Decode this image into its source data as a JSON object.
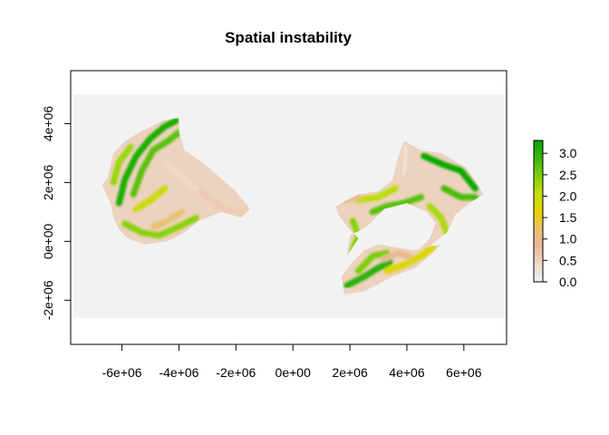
{
  "chart_data": {
    "type": "heatmap",
    "title": "Spatial instability",
    "xlabel": "",
    "ylabel": "",
    "xlim": [
      -7800000,
      7500000
    ],
    "ylim": [
      -3500000,
      5800000
    ],
    "extent": {
      "xmin": -7700000,
      "xmax": 7500000,
      "ymin": -2600000,
      "ymax": 5000000
    },
    "x_ticks": [
      {
        "value": -6000000,
        "label": "-6e+06"
      },
      {
        "value": -4000000,
        "label": "-4e+06"
      },
      {
        "value": -2000000,
        "label": "-2e+06"
      },
      {
        "value": 0,
        "label": "0e+00"
      },
      {
        "value": 2000000,
        "label": "2e+06"
      },
      {
        "value": 4000000,
        "label": "4e+06"
      },
      {
        "value": 6000000,
        "label": "6e+06"
      }
    ],
    "y_ticks": [
      {
        "value": -2000000,
        "label": "-2e+06"
      },
      {
        "value": 0,
        "label": "0e+00"
      },
      {
        "value": 2000000,
        "label": "2e+06"
      },
      {
        "value": 4000000,
        "label": "4e+06"
      }
    ],
    "colorbar": {
      "min": 0.0,
      "max": 3.3,
      "ticks": [
        {
          "value": 0.0,
          "label": "0.0"
        },
        {
          "value": 0.5,
          "label": "0.5"
        },
        {
          "value": 1.0,
          "label": "1.0"
        },
        {
          "value": 1.5,
          "label": "1.5"
        },
        {
          "value": 2.0,
          "label": "2.0"
        },
        {
          "value": 2.5,
          "label": "2.5"
        },
        {
          "value": 3.0,
          "label": "3.0"
        }
      ],
      "palette": [
        "#f2f2f2",
        "#eed9c8",
        "#ebb89a",
        "#e8c36e",
        "#e6d400",
        "#c2df0a",
        "#7fcf0d",
        "#3cb80d",
        "#00a600"
      ]
    },
    "background_color": "#f2f2f2",
    "regions": [
      {
        "name": "west",
        "polygon": [
          [
            -6500000,
            2200000
          ],
          [
            -6700000,
            1900000
          ],
          [
            -6400000,
            1300000
          ],
          [
            -6300000,
            800000
          ],
          [
            -6100000,
            400000
          ],
          [
            -5800000,
            100000
          ],
          [
            -5200000,
            -100000
          ],
          [
            -4400000,
            0
          ],
          [
            -3800000,
            300000
          ],
          [
            -3300000,
            700000
          ],
          [
            -2500000,
            1000000
          ],
          [
            -1800000,
            800000
          ],
          [
            -1500000,
            1100000
          ],
          [
            -2000000,
            1700000
          ],
          [
            -2600000,
            2200000
          ],
          [
            -3200000,
            2700000
          ],
          [
            -3800000,
            3100000
          ],
          [
            -4000000,
            3700000
          ],
          [
            -4000000,
            4200000
          ],
          [
            -4600000,
            4100000
          ],
          [
            -5400000,
            3700000
          ],
          [
            -5900000,
            3400000
          ],
          [
            -6300000,
            3000000
          ],
          [
            -6400000,
            2600000
          ]
        ],
        "bands": [
          {
            "polyline": [
              [
                -6100000,
                1300000
              ],
              [
                -5900000,
                2100000
              ],
              [
                -5500000,
                2900000
              ],
              [
                -5000000,
                3500000
              ],
              [
                -4500000,
                3900000
              ],
              [
                -4100000,
                4100000
              ]
            ],
            "value": 3.1
          },
          {
            "polyline": [
              [
                -5600000,
                1600000
              ],
              [
                -5300000,
                2400000
              ],
              [
                -4900000,
                3100000
              ],
              [
                -4400000,
                3400000
              ],
              [
                -4000000,
                3700000
              ]
            ],
            "value": 2.7
          },
          {
            "polyline": [
              [
                -6300000,
                2000000
              ],
              [
                -6100000,
                2700000
              ],
              [
                -5700000,
                3200000
              ]
            ],
            "value": 2.3
          },
          {
            "polyline": [
              [
                -5900000,
                600000
              ],
              [
                -5300000,
                300000
              ],
              [
                -4700000,
                200000
              ],
              [
                -4000000,
                500000
              ],
              [
                -3400000,
                800000
              ]
            ],
            "value": 2.4
          },
          {
            "polyline": [
              [
                -5500000,
                1100000
              ],
              [
                -5000000,
                1400000
              ],
              [
                -4500000,
                1800000
              ]
            ],
            "value": 2.0
          },
          {
            "polyline": [
              [
                -4900000,
                500000
              ],
              [
                -4400000,
                700000
              ],
              [
                -3900000,
                1000000
              ]
            ],
            "value": 1.2
          },
          {
            "polyline": [
              [
                -3600000,
                2000000
              ],
              [
                -3000000,
                1500000
              ],
              [
                -2400000,
                1100000
              ],
              [
                -1800000,
                1000000
              ]
            ],
            "value": 0.6
          },
          {
            "polyline": [
              [
                -4400000,
                2600000
              ],
              [
                -3900000,
                2200000
              ],
              [
                -3400000,
                1800000
              ]
            ],
            "value": 0.4
          }
        ]
      },
      {
        "name": "east-north",
        "polygon": [
          [
            1500000,
            1200000
          ],
          [
            2300000,
            1600000
          ],
          [
            3000000,
            1700000
          ],
          [
            3500000,
            2100000
          ],
          [
            3700000,
            2900000
          ],
          [
            3900000,
            3400000
          ],
          [
            4500000,
            3100000
          ],
          [
            5200000,
            3000000
          ],
          [
            6100000,
            2500000
          ],
          [
            6700000,
            1600000
          ],
          [
            6200000,
            1300000
          ],
          [
            5700000,
            900000
          ],
          [
            5400000,
            300000
          ],
          [
            5000000,
            0
          ],
          [
            4700000,
            -300000
          ],
          [
            4400000,
            -300000
          ],
          [
            4800000,
            100000
          ],
          [
            5000000,
            600000
          ],
          [
            4700000,
            1000000
          ],
          [
            4000000,
            1300000
          ],
          [
            3200000,
            1100000
          ],
          [
            2600000,
            500000
          ],
          [
            2000000,
            200000
          ],
          [
            1900000,
            -500000
          ],
          [
            2300000,
            100000
          ],
          [
            1900000,
            500000
          ],
          [
            1600000,
            900000
          ]
        ],
        "bands": [
          {
            "polyline": [
              [
                4600000,
                2900000
              ],
              [
                5300000,
                2600000
              ],
              [
                5900000,
                2400000
              ],
              [
                6400000,
                1800000
              ]
            ],
            "value": 3.2
          },
          {
            "polyline": [
              [
                5300000,
                1800000
              ],
              [
                5900000,
                1500000
              ],
              [
                6400000,
                1500000
              ]
            ],
            "value": 2.8
          },
          {
            "polyline": [
              [
                2800000,
                1000000
              ],
              [
                3300000,
                1200000
              ],
              [
                3900000,
                1300000
              ],
              [
                4500000,
                1500000
              ]
            ],
            "value": 2.7
          },
          {
            "polyline": [
              [
                2300000,
                1400000
              ],
              [
                3000000,
                1500000
              ],
              [
                3600000,
                1800000
              ]
            ],
            "value": 2.1
          },
          {
            "polyline": [
              [
                4800000,
                1200000
              ],
              [
                5200000,
                800000
              ],
              [
                5400000,
                300000
              ]
            ],
            "value": 2.2
          },
          {
            "polyline": [
              [
                2100000,
                700000
              ],
              [
                2300000,
                200000
              ],
              [
                2100000,
                -300000
              ]
            ],
            "value": 2.4
          },
          {
            "polyline": [
              [
                1800000,
                1400000
              ],
              [
                2300000,
                1500000
              ]
            ],
            "value": 1.0
          }
        ]
      },
      {
        "name": "east-south",
        "polygon": [
          [
            1700000,
            -1200000
          ],
          [
            1800000,
            -1800000
          ],
          [
            2500000,
            -1700000
          ],
          [
            3500000,
            -1200000
          ],
          [
            4300000,
            -900000
          ],
          [
            4900000,
            -400000
          ],
          [
            5200000,
            -100000
          ],
          [
            4700000,
            -200000
          ],
          [
            4200000,
            -300000
          ],
          [
            3600000,
            -200000
          ],
          [
            3000000,
            -100000
          ],
          [
            2500000,
            -300000
          ],
          [
            2000000,
            -800000
          ]
        ],
        "bands": [
          {
            "polyline": [
              [
                1900000,
                -1500000
              ],
              [
                2500000,
                -1200000
              ],
              [
                3000000,
                -900000
              ],
              [
                3400000,
                -700000
              ]
            ],
            "value": 3.0
          },
          {
            "polyline": [
              [
                2300000,
                -1000000
              ],
              [
                2800000,
                -500000
              ],
              [
                3300000,
                -400000
              ]
            ],
            "value": 2.5
          },
          {
            "polyline": [
              [
                3300000,
                -1000000
              ],
              [
                3900000,
                -800000
              ],
              [
                4500000,
                -500000
              ],
              [
                4900000,
                -200000
              ]
            ],
            "value": 1.8
          },
          {
            "polyline": [
              [
                3200000,
                -600000
              ],
              [
                3700000,
                -400000
              ],
              [
                4100000,
                -500000
              ]
            ],
            "value": 0.9
          }
        ]
      },
      {
        "name": "east-tail",
        "polygon": [
          [
            3900000,
            3300000
          ],
          [
            4000000,
            3400000
          ],
          [
            4200000,
            3000000
          ],
          [
            3900000,
            2200000
          ],
          [
            3700000,
            2000000
          ],
          [
            3800000,
            2600000
          ]
        ],
        "bands": [
          {
            "polyline": [
              [
                3950000,
                3200000
              ],
              [
                4000000,
                2700000
              ],
              [
                3850000,
                2200000
              ]
            ],
            "value": 0.3
          }
        ]
      }
    ]
  }
}
